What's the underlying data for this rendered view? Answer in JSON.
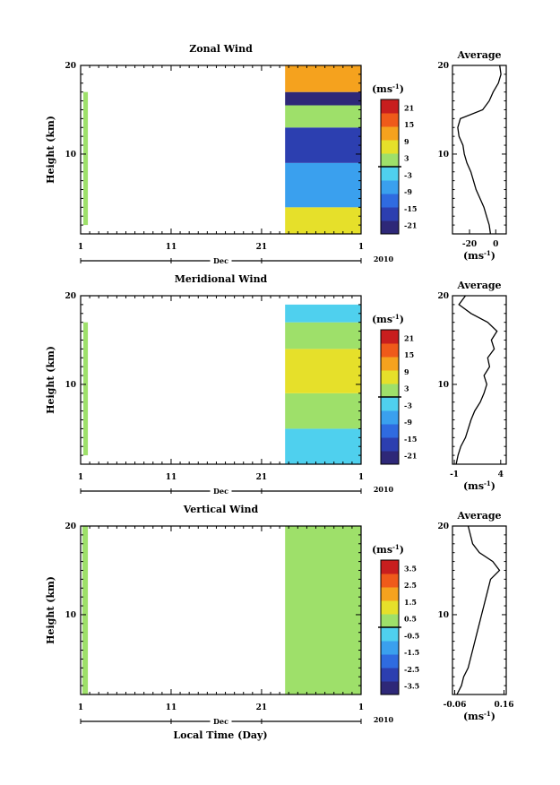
{
  "figure": {
    "xlabel": "Local Time (Day)",
    "x_month_label": "Dec",
    "year_label": "2010",
    "ylabel": "Height (km)",
    "x_ticks": [
      "1",
      "11",
      "21",
      "1"
    ],
    "y_ticks": [
      "20",
      "10"
    ],
    "unit_label": "(ms",
    "unit_sup": "-1",
    "unit_close": ")",
    "avg_title": "Average"
  },
  "chart_data": [
    {
      "type": "heatmap",
      "title": "Zonal Wind",
      "xlabel": "Local Time (Day)",
      "ylabel": "Height (km)",
      "xlim": [
        1,
        32
      ],
      "ylim": [
        1,
        20
      ],
      "colorbar_ticks": [
        "21",
        "15",
        "9",
        "3",
        "-3",
        "-9",
        "-15",
        "-21"
      ],
      "colorbar_range": [
        -24,
        24
      ],
      "data_segments": [
        {
          "x_start": 1.3,
          "x_end": 1.8,
          "y_from": 2,
          "y_to": 17,
          "value": 0
        },
        {
          "x_start": 23.6,
          "x_end": 32,
          "rows": [
            {
              "z_from": 1,
              "z_to": 4,
              "value": 9
            },
            {
              "z_from": 4,
              "z_to": 9,
              "value": -9
            },
            {
              "z_from": 9,
              "z_to": 13,
              "value": -15
            },
            {
              "z_from": 13,
              "z_to": 15.5,
              "value": 0
            },
            {
              "z_from": 15.5,
              "z_to": 17,
              "value": -24
            },
            {
              "z_from": 17,
              "z_to": 20,
              "value": 12
            }
          ]
        }
      ],
      "average": {
        "title": "Average",
        "x_ticks": [
          "-20",
          "0"
        ],
        "xlim": [
          -33,
          8
        ],
        "x": [
          -4,
          -5,
          -7,
          -9,
          -12,
          -15,
          -17,
          -19,
          -22,
          -24,
          -25,
          -28,
          -29,
          -27,
          -10,
          -5,
          -2,
          2,
          4,
          3
        ],
        "z": [
          1,
          2,
          3,
          4,
          5,
          6,
          7,
          8,
          9,
          10,
          11,
          12,
          13,
          14,
          15,
          16,
          17,
          18,
          19,
          20
        ]
      }
    },
    {
      "type": "heatmap",
      "title": "Meridional Wind",
      "xlabel": "Local Time (Day)",
      "ylabel": "Height (km)",
      "xlim": [
        1,
        32
      ],
      "ylim": [
        1,
        20
      ],
      "colorbar_ticks": [
        "21",
        "15",
        "9",
        "3",
        "-3",
        "-9",
        "-15",
        "-21"
      ],
      "colorbar_range": [
        -24,
        24
      ],
      "data_segments": [
        {
          "x_start": 1.3,
          "x_end": 1.8,
          "y_from": 2,
          "y_to": 17,
          "value": 3
        },
        {
          "x_start": 23.6,
          "x_end": 32,
          "rows": [
            {
              "z_from": 1,
              "z_to": 5,
              "value": -4
            },
            {
              "z_from": 5,
              "z_to": 9,
              "value": 2
            },
            {
              "z_from": 9,
              "z_to": 14,
              "value": 6
            },
            {
              "z_from": 14,
              "z_to": 17,
              "value": 1
            },
            {
              "z_from": 17,
              "z_to": 19,
              "value": -2
            }
          ]
        }
      ],
      "average": {
        "title": "Average",
        "x_ticks": [
          "-1",
          "4"
        ],
        "xlim": [
          -1.2,
          4.6
        ],
        "x": [
          -0.8,
          -0.6,
          -0.3,
          0.2,
          0.5,
          0.8,
          1.2,
          1.8,
          2.2,
          2.5,
          2.2,
          2.8,
          2.6,
          3.3,
          3.0,
          3.6,
          2.6,
          0.8,
          -0.5,
          0.2
        ],
        "z": [
          1,
          2,
          3,
          4,
          5,
          6,
          7,
          8,
          9,
          10,
          11,
          12,
          13,
          14,
          15,
          16,
          17,
          18,
          19,
          20
        ]
      }
    },
    {
      "type": "heatmap",
      "title": "Vertical Wind",
      "xlabel": "Local Time (Day)",
      "ylabel": "Height (km)",
      "xlim": [
        1,
        32
      ],
      "ylim": [
        1,
        20
      ],
      "colorbar_ticks": [
        "3.5",
        "2.5",
        "1.5",
        "0.5",
        "-0.5",
        "-1.5",
        "-2.5",
        "-3.5"
      ],
      "colorbar_range": [
        -4,
        4
      ],
      "data_segments": [
        {
          "x_start": 1.2,
          "x_end": 1.8,
          "y_from": 1,
          "y_to": 20,
          "value": 0.1
        },
        {
          "x_start": 23.6,
          "x_end": 32,
          "rows": [
            {
              "z_from": 1,
              "z_to": 20,
              "value": 0.1
            }
          ]
        }
      ],
      "average": {
        "title": "Average",
        "x_ticks": [
          "-0.06",
          "0.16"
        ],
        "xlim": [
          -0.07,
          0.17
        ],
        "x": [
          -0.05,
          -0.03,
          -0.02,
          0.0,
          0.01,
          0.02,
          0.03,
          0.04,
          0.05,
          0.06,
          0.07,
          0.08,
          0.09,
          0.1,
          0.14,
          0.11,
          0.05,
          0.02,
          0.01,
          0.0
        ],
        "z": [
          1,
          2,
          3,
          4,
          5,
          6,
          7,
          8,
          9,
          10,
          11,
          12,
          13,
          14,
          15,
          16,
          17,
          18,
          19,
          20
        ]
      }
    }
  ]
}
